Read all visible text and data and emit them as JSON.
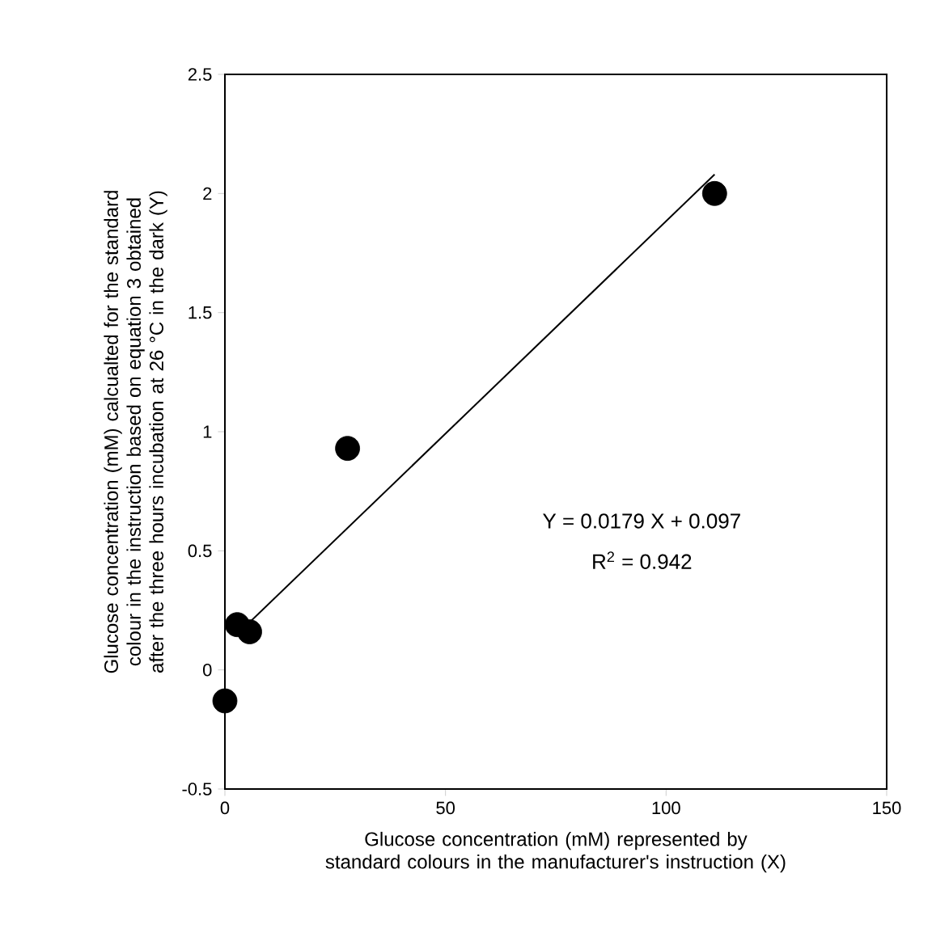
{
  "chart_data": {
    "type": "scatter",
    "xlabel": "Glucose concentration (mM) represented by standard colours in the manufacturer's instruction (X)",
    "ylabel": "Glucose concentration (mM) calcualted for the standard colour in the instruction based on equation 3 obtained after the three hours incubation at 26 °C in the dark (Y)",
    "series": [
      {
        "color": "#000000",
        "marker": "circle",
        "x": [
          0,
          2.8,
          5.6,
          27.8,
          111
        ],
        "values": [
          -0.13,
          0.19,
          0.16,
          0.93,
          2.0
        ]
      },
      {
        "type": "line",
        "color": "#000000",
        "marker": "none",
        "x": [
          2.8,
          111
        ],
        "values": [
          0.15,
          2.08
        ]
      }
    ],
    "annotations": [
      "Y = 0.0179 X + 0.097",
      "R$^{2}$ = 0.942"
    ],
    "xlim": [
      0,
      150
    ],
    "xticks": [
      0,
      50,
      100,
      150
    ],
    "ylim": [
      -0.5,
      2.5
    ],
    "yticks": [
      -0.5,
      0,
      0.5,
      1,
      1.5,
      2,
      2.5
    ]
  }
}
